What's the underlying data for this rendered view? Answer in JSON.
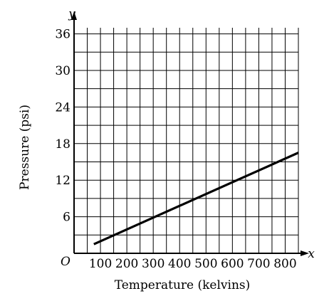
{
  "chart_data": {
    "type": "line",
    "xlabel": "Temperature (kelvins)",
    "ylabel": "Pressure (psi)",
    "x_axis_var": "x",
    "y_axis_var": "y",
    "origin_label": "O",
    "xlim": [
      0,
      850
    ],
    "ylim": [
      0,
      37
    ],
    "x_ticks": [
      100,
      200,
      300,
      400,
      500,
      600,
      700,
      800
    ],
    "y_ticks": [
      6,
      12,
      18,
      24,
      30,
      36
    ],
    "x_tick_labels": [
      "100",
      "200",
      "300",
      "400",
      "500",
      "600",
      "700",
      "800"
    ],
    "y_tick_labels": [
      "6",
      "12",
      "18",
      "24",
      "30",
      "36"
    ],
    "x_grid_step": 50,
    "y_grid_step": 3,
    "grid": true,
    "series": [
      {
        "x": [
          75,
          850
        ],
        "y": [
          1.5,
          16.5
        ]
      }
    ]
  }
}
